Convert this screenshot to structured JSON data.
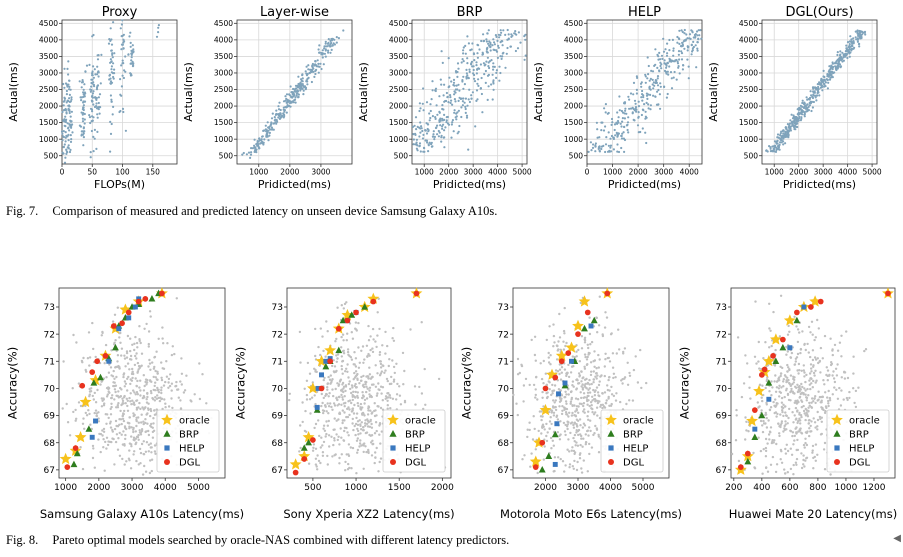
{
  "figure7": {
    "caption_label": "Fig. 7.",
    "caption_text": "Comparison of measured and predicted latency on unseen device Samsung Galaxy A10s.",
    "point_color": "#7fa3bb"
  },
  "figure8": {
    "caption_label": "Fig. 8.",
    "caption_text": "Pareto optimal models searched by oracle-NAS combined with different latency predictors.",
    "background_points_color": "#c0c0c0",
    "legend_colors": {
      "oracle": "#f7c21b",
      "BRP": "#2e7d1e",
      "HELP": "#3a78bf",
      "DGL": "#e8321e"
    }
  },
  "chart_data": [
    {
      "type": "scatter",
      "title": "Proxy",
      "xlabel": "FLOPs(M)",
      "ylabel": "Actual(ms)",
      "xlim": [
        0,
        190
      ],
      "ylim": [
        250,
        4600
      ],
      "xticks": [
        "0",
        "50",
        "100",
        "150"
      ],
      "yticks": [
        "500",
        "1000",
        "1500",
        "2000",
        "2500",
        "3000",
        "3500",
        "4000",
        "4500"
      ],
      "grid": true,
      "pattern": "vertical clusters near x = 5, 12, 35, 50, 60, 82, 100, 115"
    },
    {
      "type": "scatter",
      "title": "Layer-wise",
      "xlabel": "Pridicted(ms)",
      "ylabel": "Actual(ms)",
      "xlim": [
        300,
        4000
      ],
      "ylim": [
        250,
        4600
      ],
      "xticks": [
        "1000",
        "2000",
        "3000"
      ],
      "yticks": [
        "500",
        "1000",
        "1500",
        "2000",
        "2500",
        "3000",
        "3500",
        "4000",
        "4500"
      ],
      "grid": true,
      "pattern": "banded positive correlation"
    },
    {
      "type": "scatter",
      "title": "BRP",
      "xlabel": "Pridicted(ms)",
      "ylabel": "Actual(ms)",
      "xlim": [
        500,
        5200
      ],
      "ylim": [
        250,
        4600
      ],
      "xticks": [
        "1000",
        "2000",
        "3000",
        "4000",
        "5000"
      ],
      "yticks": [
        "500",
        "1000",
        "1500",
        "2000",
        "2500",
        "3000",
        "3500",
        "4000",
        "4500"
      ],
      "grid": true,
      "pattern": "wide positive correlation"
    },
    {
      "type": "scatter",
      "title": "HELP",
      "xlabel": "Pridicted(ms)",
      "ylabel": "Actual(ms)",
      "xlim": [
        0,
        4500
      ],
      "ylim": [
        250,
        4600
      ],
      "xticks": [
        "0",
        "1000",
        "2000",
        "3000",
        "4000"
      ],
      "yticks": [
        "500",
        "1000",
        "1500",
        "2000",
        "2500",
        "3000",
        "3500",
        "4000",
        "4500"
      ],
      "grid": true,
      "pattern": "moderate positive correlation"
    },
    {
      "type": "scatter",
      "title": "DGL(Ours)",
      "xlabel": "Pridicted(ms)",
      "ylabel": "Actual(ms)",
      "xlim": [
        500,
        5200
      ],
      "ylim": [
        250,
        4600
      ],
      "xticks": [
        "1000",
        "2000",
        "3000",
        "4000",
        "5000"
      ],
      "yticks": [
        "500",
        "1000",
        "1500",
        "2000",
        "2500",
        "3000",
        "3500",
        "4000",
        "4500"
      ],
      "grid": true,
      "pattern": "tight positive correlation"
    },
    {
      "type": "scatter",
      "xlabel": "Samsung Galaxy A10s Latency(ms)",
      "ylabel": "Accuracy(%)",
      "xlim": [
        800,
        5800
      ],
      "ylim": [
        66.7,
        73.7
      ],
      "xticks": [
        "1000",
        "2000",
        "3000",
        "4000",
        "5000"
      ],
      "yticks": [
        "67",
        "68",
        "69",
        "70",
        "71",
        "72",
        "73"
      ],
      "legend": [
        "oracle",
        "BRP",
        "HELP",
        "DGL"
      ],
      "legend_position": "lower-right",
      "background": {
        "center": [
          3000,
          69.5
        ]
      },
      "series": [
        {
          "name": "oracle",
          "x": [
            1000,
            1300,
            1450,
            1600,
            1900,
            2200,
            2500,
            2800,
            3200,
            3900
          ],
          "y": [
            67.4,
            67.7,
            68.2,
            69.5,
            70.3,
            71.2,
            72.2,
            72.9,
            73.2,
            73.5
          ]
        },
        {
          "name": "BRP",
          "x": [
            1250,
            1350,
            1700,
            1850,
            2050,
            2300,
            2500,
            2600,
            2800,
            3000,
            3200,
            3600,
            3800
          ],
          "y": [
            67.2,
            67.6,
            68.5,
            70.2,
            70.4,
            71.1,
            71.5,
            72.3,
            72.6,
            73.0,
            73.1,
            73.3,
            73.5
          ]
        },
        {
          "name": "HELP",
          "x": [
            1800,
            1900,
            2300,
            2600,
            2900,
            3100,
            3200
          ],
          "y": [
            68.2,
            68.8,
            71.0,
            72.2,
            72.6,
            73.0,
            73.3
          ]
        },
        {
          "name": "DGL",
          "x": [
            1050,
            1300,
            1500,
            1800,
            1950,
            2200,
            2450,
            2700,
            2900,
            3200,
            3400,
            3900
          ],
          "y": [
            67.1,
            67.8,
            70.1,
            70.6,
            71.0,
            71.2,
            72.3,
            72.4,
            72.8,
            73.2,
            73.3,
            73.5
          ]
        }
      ]
    },
    {
      "type": "scatter",
      "xlabel": "Sony Xperia XZ2 Latency(ms)",
      "ylabel": "Accuracy(%)",
      "xlim": [
        200,
        2100
      ],
      "ylim": [
        66.7,
        73.7
      ],
      "xticks": [
        "500",
        "1000",
        "1500",
        "2000"
      ],
      "yticks": [
        "67",
        "68",
        "69",
        "70",
        "71",
        "72",
        "73"
      ],
      "legend": [
        "oracle",
        "BRP",
        "HELP",
        "DGL"
      ],
      "legend_position": "lower-right",
      "background": {
        "center": [
          1000,
          69.5
        ]
      },
      "series": [
        {
          "name": "oracle",
          "x": [
            300,
            400,
            450,
            500,
            600,
            700,
            800,
            900,
            1100,
            1200,
            1700
          ],
          "y": [
            67.2,
            67.5,
            68.2,
            70.0,
            71.0,
            71.4,
            72.2,
            72.7,
            73.0,
            73.3,
            73.5
          ]
        },
        {
          "name": "BRP",
          "x": [
            400,
            450,
            550,
            650,
            700,
            800,
            850,
            950,
            1100
          ],
          "y": [
            67.8,
            68.0,
            69.2,
            70.8,
            71.0,
            71.4,
            72.5,
            72.7,
            73.0
          ]
        },
        {
          "name": "HELP",
          "x": [
            550,
            560,
            600,
            650,
            700,
            900,
            1000
          ],
          "y": [
            69.3,
            70.0,
            70.5,
            71.0,
            71.1,
            72.5,
            72.8
          ]
        },
        {
          "name": "DGL",
          "x": [
            300,
            400,
            500,
            600,
            700,
            800,
            900,
            1000,
            1200,
            1700
          ],
          "y": [
            66.9,
            67.4,
            68.1,
            70.0,
            71.0,
            72.2,
            72.5,
            72.8,
            73.2,
            73.5
          ]
        }
      ]
    },
    {
      "type": "scatter",
      "xlabel": "Motorola Moto E6s Latency(ms)",
      "ylabel": "Accuracy(%)",
      "xlim": [
        1000,
        5800
      ],
      "ylim": [
        66.7,
        73.7
      ],
      "xticks": [
        "2000",
        "3000",
        "4000",
        "5000"
      ],
      "yticks": [
        "67",
        "68",
        "69",
        "70",
        "71",
        "72",
        "73"
      ],
      "legend": [
        "oracle",
        "BRP",
        "HELP",
        "DGL"
      ],
      "legend_position": "lower-right",
      "background": {
        "center": [
          3000,
          69.5
        ]
      },
      "series": [
        {
          "name": "oracle",
          "x": [
            1700,
            1800,
            2000,
            2200,
            2500,
            2800,
            3000,
            3200,
            3900
          ],
          "y": [
            67.3,
            68.0,
            69.2,
            70.5,
            71.2,
            71.5,
            72.3,
            73.2,
            73.5
          ]
        },
        {
          "name": "BRP",
          "x": [
            1900,
            2100,
            2300,
            2600,
            2900,
            3200,
            3500
          ],
          "y": [
            67.0,
            67.5,
            68.3,
            70.1,
            71.0,
            72.2,
            72.5
          ]
        },
        {
          "name": "HELP",
          "x": [
            2300,
            2350,
            2400,
            2600,
            2800,
            3400
          ],
          "y": [
            67.2,
            68.7,
            69.8,
            70.2,
            71.0,
            72.3
          ]
        },
        {
          "name": "DGL",
          "x": [
            1700,
            1900,
            2000,
            2300,
            2500,
            2700,
            3000,
            3300,
            3900
          ],
          "y": [
            67.1,
            68.0,
            70.0,
            70.4,
            71.0,
            71.3,
            72.0,
            72.8,
            73.5
          ]
        }
      ]
    },
    {
      "type": "scatter",
      "xlabel": "Huawei Mate 20 Latency(ms)",
      "ylabel": "Accuracy(%)",
      "xlim": [
        180,
        1350
      ],
      "ylim": [
        66.7,
        73.7
      ],
      "xticks": [
        "200",
        "400",
        "600",
        "800",
        "1000",
        "1200"
      ],
      "yticks": [
        "67",
        "68",
        "69",
        "70",
        "71",
        "72",
        "73"
      ],
      "legend": [
        "oracle",
        "BRP",
        "HELP",
        "DGL"
      ],
      "legend_position": "lower-right",
      "background": {
        "center": [
          650,
          69.5
        ]
      },
      "series": [
        {
          "name": "oracle",
          "x": [
            250,
            300,
            330,
            380,
            420,
            450,
            500,
            600,
            700,
            780,
            1300
          ],
          "y": [
            67.0,
            67.5,
            68.8,
            69.9,
            70.6,
            71.0,
            71.8,
            72.5,
            73.0,
            73.2,
            73.5
          ]
        },
        {
          "name": "BRP",
          "x": [
            300,
            350,
            400,
            450,
            500,
            550,
            650
          ],
          "y": [
            67.3,
            68.2,
            69.0,
            70.2,
            71.0,
            71.5,
            72.5
          ]
        },
        {
          "name": "HELP",
          "x": [
            350,
            450,
            600,
            700
          ],
          "y": [
            68.5,
            69.6,
            71.5,
            73.0
          ]
        },
        {
          "name": "DGL",
          "x": [
            250,
            300,
            350,
            400,
            420,
            480,
            550,
            650,
            750,
            820,
            1300
          ],
          "y": [
            67.1,
            67.6,
            69.2,
            70.5,
            70.7,
            71.2,
            71.8,
            72.8,
            73.0,
            73.2,
            73.5
          ]
        }
      ]
    }
  ]
}
